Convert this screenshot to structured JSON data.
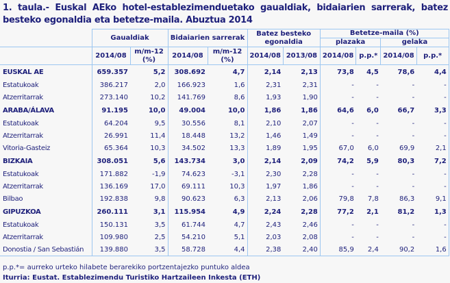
{
  "title": "1. taula.- Euskal AEko hotel-establezimenduetako gaualdiak, bidaiarien sarrerak, batez besteko egonaldia eta betetze-maila. Abuztua 2014",
  "headers": {
    "gaualdiak": "Gaualdiak",
    "sarrerak": "Bidaiarien sarrerak",
    "egonaldia": "Batez besteko egonaldia",
    "betetze": "Betetze-maila (%)",
    "plazaka": "plazaka",
    "gelaka": "gelaka",
    "sub": [
      "2014/08",
      "m/m-12 (%)",
      "2014/08",
      "m/m-12 (%)",
      "2014/08",
      "2013/08",
      "2014/08",
      "p.p.*",
      "2014/08",
      "p.p.*"
    ]
  },
  "rows": [
    {
      "label": "EUSKAL AE",
      "bold": true,
      "values": [
        "659.357",
        "5,2",
        "308.692",
        "4,7",
        "2,14",
        "2,13",
        "73,8",
        "4,5",
        "78,6",
        "4,4"
      ]
    },
    {
      "label": "Estatukoak",
      "values": [
        "386.217",
        "2,0",
        "166.923",
        "1,6",
        "2,31",
        "2,31",
        "-",
        "-",
        "-",
        "-"
      ]
    },
    {
      "label": "Atzerritarrak",
      "values": [
        "273.140",
        "10,2",
        "141.769",
        "8,6",
        "1,93",
        "1,90",
        "-",
        "-",
        "-",
        "-"
      ]
    },
    {
      "label": "ARABA/ÁLAVA",
      "bold": true,
      "values": [
        "91.195",
        "10,0",
        "49.004",
        "10,0",
        "1,86",
        "1,86",
        "64,6",
        "6,0",
        "66,7",
        "3,3"
      ]
    },
    {
      "label": "Estatukoak",
      "values": [
        "64.204",
        "9,5",
        "30.556",
        "8,1",
        "2,10",
        "2,07",
        "-",
        "-",
        "-",
        "-"
      ]
    },
    {
      "label": "Atzerritarrak",
      "values": [
        "26.991",
        "11,4",
        "18.448",
        "13,2",
        "1,46",
        "1,49",
        "-",
        "-",
        "-",
        "-"
      ]
    },
    {
      "label": "Vitoria-Gasteiz",
      "values": [
        "65.364",
        "10,3",
        "34.502",
        "13,3",
        "1,89",
        "1,95",
        "67,0",
        "6,0",
        "69,9",
        "2,1"
      ]
    },
    {
      "label": "BIZKAIA",
      "bold": true,
      "values": [
        "308.051",
        "5,6",
        "143.734",
        "3,0",
        "2,14",
        "2,09",
        "74,2",
        "5,9",
        "80,3",
        "7,2"
      ]
    },
    {
      "label": "Estatukoak",
      "values": [
        "171.882",
        "-1,9",
        "74.623",
        "-3,1",
        "2,30",
        "2,28",
        "-",
        "-",
        "-",
        "-"
      ]
    },
    {
      "label": "Atzerritarrak",
      "values": [
        "136.169",
        "17,0",
        "69.111",
        "10,3",
        "1,97",
        "1,86",
        "-",
        "-",
        "-",
        "-"
      ]
    },
    {
      "label": "Bilbao",
      "values": [
        "192.838",
        "9,8",
        "90.623",
        "6,3",
        "2,13",
        "2,06",
        "79,8",
        "7,8",
        "86,3",
        "9,1"
      ]
    },
    {
      "label": "GIPUZKOA",
      "bold": true,
      "values": [
        "260.111",
        "3,1",
        "115.954",
        "4,9",
        "2,24",
        "2,28",
        "77,2",
        "2,1",
        "81,2",
        "1,3"
      ]
    },
    {
      "label": "Estatukoak",
      "values": [
        "150.131",
        "3,5",
        "61.744",
        "4,7",
        "2,43",
        "2,46",
        "-",
        "-",
        "-",
        "-"
      ]
    },
    {
      "label": "Atzerritarrak",
      "values": [
        "109.980",
        "2,5",
        "54.210",
        "5,1",
        "2,03",
        "2,08",
        "-",
        "-",
        "-",
        "-"
      ]
    },
    {
      "label": "Donostia / San Sebastián",
      "values": [
        "139.880",
        "3,5",
        "58.728",
        "4,4",
        "2,38",
        "2,40",
        "85,9",
        "2,4",
        "90,2",
        "1,6"
      ]
    }
  ],
  "footnote": "p.p.*= aurreko urteko hilabete berarekiko portzentajezko puntuko aldea",
  "source": "Iturria: Eustat. Establezimendu Turistiko Hartzaileen Inkesta (ETH)",
  "colors": {
    "text": "#1d1f7a",
    "border": "#9cc6f0",
    "background": "#f7f7f7"
  }
}
